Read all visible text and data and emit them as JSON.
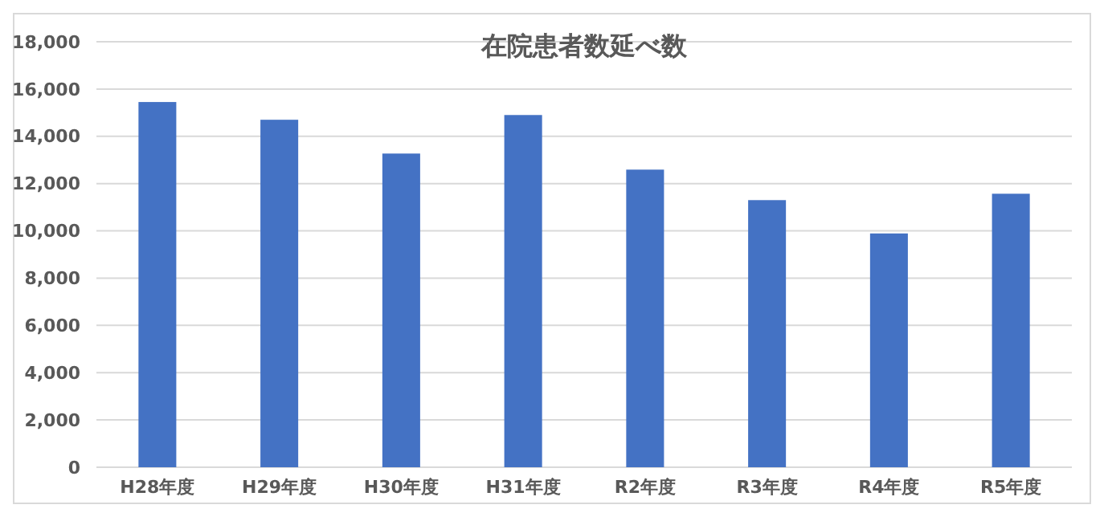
{
  "chart_data": {
    "type": "bar",
    "title": "在院患者数延べ数",
    "categories": [
      "H28年度",
      "H29年度",
      "H30年度",
      "H31年度",
      "R2年度",
      "R3年度",
      "R4年度",
      "R5年度"
    ],
    "values": [
      15450,
      14700,
      13270,
      14900,
      12590,
      11300,
      9890,
      11570
    ],
    "color": "#4472c4",
    "ylim": [
      0,
      18000
    ],
    "yticks": [
      {
        "value": 0,
        "label": "0"
      },
      {
        "value": 2000,
        "label": "2,000"
      },
      {
        "value": 4000,
        "label": "4,000"
      },
      {
        "value": 6000,
        "label": "6,000"
      },
      {
        "value": 8000,
        "label": "8,000"
      },
      {
        "value": 10000,
        "label": "10,000"
      },
      {
        "value": 12000,
        "label": "12,000"
      },
      {
        "value": 14000,
        "label": "14,000"
      },
      {
        "value": 16000,
        "label": "16,000"
      },
      {
        "value": 18000,
        "label": "18,000"
      }
    ],
    "grid": true
  }
}
